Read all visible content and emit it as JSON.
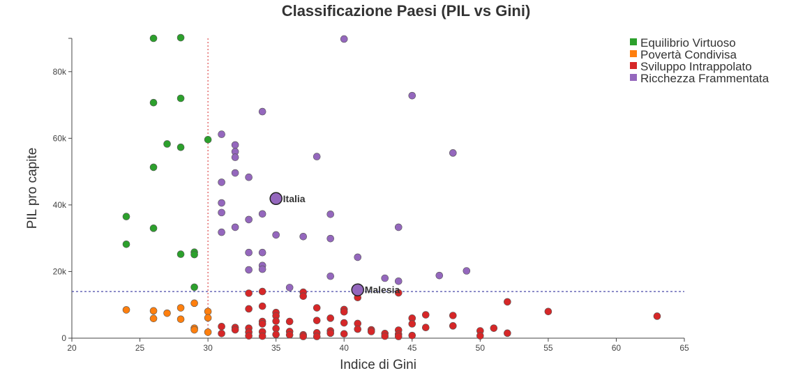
{
  "chart_data": {
    "type": "scatter",
    "title": "Classificazione Paesi (PIL vs Gini)",
    "xlabel": "Indice di Gini",
    "ylabel": "PIL pro capite",
    "xlim": [
      20,
      65
    ],
    "ylim": [
      0,
      90000
    ],
    "x_ticks": [
      20,
      25,
      30,
      35,
      40,
      45,
      50,
      55,
      60,
      65
    ],
    "y_ticks": [
      0,
      20000,
      40000,
      60000,
      80000
    ],
    "y_tick_labels": [
      "0",
      "20k",
      "40k",
      "60k",
      "80k"
    ],
    "grid": false,
    "legend_position": "top-right",
    "reference_lines": {
      "vertical_x": 30,
      "vertical_color": "#d62728",
      "horizontal_y": 14000,
      "horizontal_color": "#4a4aa8"
    },
    "series": [
      {
        "name": "Equilibrio Virtuoso",
        "color": "#2ca02c",
        "points": [
          [
            26,
            90000
          ],
          [
            28,
            90200
          ],
          [
            26,
            70700
          ],
          [
            28,
            72000
          ],
          [
            27,
            58300
          ],
          [
            28,
            57300
          ],
          [
            30,
            59600
          ],
          [
            26,
            51300
          ],
          [
            24,
            36500
          ],
          [
            26,
            33000
          ],
          [
            24,
            28200
          ],
          [
            28,
            25200
          ],
          [
            29,
            25800
          ],
          [
            29,
            25100
          ],
          [
            29,
            15300
          ]
        ]
      },
      {
        "name": "Povertà Condivisa",
        "color": "#ff7f0e",
        "points": [
          [
            24,
            8500
          ],
          [
            26,
            8200
          ],
          [
            26,
            5900
          ],
          [
            27,
            7500
          ],
          [
            28,
            9100
          ],
          [
            28,
            5700
          ],
          [
            29,
            10500
          ],
          [
            29,
            3000
          ],
          [
            29,
            2500
          ],
          [
            30,
            8000
          ],
          [
            30,
            6100
          ],
          [
            30,
            1800
          ]
        ]
      },
      {
        "name": "Sviluppo Intrappolato",
        "color": "#d62728",
        "points": [
          [
            31,
            3500
          ],
          [
            31,
            1400
          ],
          [
            32,
            3200
          ],
          [
            32,
            2500
          ],
          [
            33,
            13500
          ],
          [
            33,
            8800
          ],
          [
            33,
            3000
          ],
          [
            33,
            1800
          ],
          [
            33,
            700
          ],
          [
            34,
            14000
          ],
          [
            34,
            9600
          ],
          [
            34,
            5000
          ],
          [
            34,
            4300
          ],
          [
            34,
            1900
          ],
          [
            34,
            600
          ],
          [
            35,
            7700
          ],
          [
            35,
            6700
          ],
          [
            35,
            5100
          ],
          [
            35,
            2900
          ],
          [
            35,
            1100
          ],
          [
            36,
            5000
          ],
          [
            36,
            2000
          ],
          [
            36,
            1000
          ],
          [
            37,
            13800
          ],
          [
            37,
            12600
          ],
          [
            37,
            1000
          ],
          [
            37,
            500
          ],
          [
            38,
            9100
          ],
          [
            38,
            5300
          ],
          [
            38,
            1600
          ],
          [
            38,
            500
          ],
          [
            39,
            6000
          ],
          [
            39,
            2200
          ],
          [
            39,
            1500
          ],
          [
            40,
            8600
          ],
          [
            40,
            7900
          ],
          [
            40,
            4600
          ],
          [
            40,
            1300
          ],
          [
            41,
            12200
          ],
          [
            41,
            4400
          ],
          [
            41,
            2700
          ],
          [
            42,
            2500
          ],
          [
            42,
            2000
          ],
          [
            43,
            1400
          ],
          [
            43,
            600
          ],
          [
            44,
            13600
          ],
          [
            44,
            2400
          ],
          [
            44,
            1200
          ],
          [
            44,
            500
          ],
          [
            45,
            6000
          ],
          [
            45,
            4300
          ],
          [
            45,
            800
          ],
          [
            46,
            7000
          ],
          [
            46,
            3200
          ],
          [
            48,
            6800
          ],
          [
            48,
            3700
          ],
          [
            50,
            2200
          ],
          [
            50,
            700
          ],
          [
            51,
            3000
          ],
          [
            52,
            10900
          ],
          [
            52,
            1500
          ],
          [
            55,
            8000
          ],
          [
            63,
            6600
          ]
        ]
      },
      {
        "name": "Ricchezza Frammentata",
        "color": "#9467bd",
        "points": [
          [
            40,
            89800
          ],
          [
            45,
            72800
          ],
          [
            34,
            68000
          ],
          [
            31,
            61200
          ],
          [
            32,
            58000
          ],
          [
            32,
            56000
          ],
          [
            32,
            54300
          ],
          [
            38,
            54500
          ],
          [
            48,
            55600
          ],
          [
            32,
            49600
          ],
          [
            33,
            48300
          ],
          [
            31,
            46800
          ],
          [
            31,
            40600
          ],
          [
            31,
            37700
          ],
          [
            34,
            37300
          ],
          [
            39,
            37200
          ],
          [
            33,
            35600
          ],
          [
            32,
            33300
          ],
          [
            44,
            33300
          ],
          [
            31,
            31800
          ],
          [
            35,
            31000
          ],
          [
            37,
            30500
          ],
          [
            39,
            29900
          ],
          [
            33,
            25700
          ],
          [
            34,
            25700
          ],
          [
            41,
            24300
          ],
          [
            34,
            21800
          ],
          [
            34,
            20700
          ],
          [
            33,
            20500
          ],
          [
            49,
            20200
          ],
          [
            47,
            18800
          ],
          [
            39,
            18600
          ],
          [
            43,
            18000
          ],
          [
            44,
            17100
          ],
          [
            36,
            15200
          ]
        ]
      }
    ],
    "highlighted": [
      {
        "label": "Italia",
        "x": 35,
        "y": 41900,
        "color": "#9467bd"
      },
      {
        "label": "Malesia",
        "x": 41,
        "y": 14500,
        "color": "#9467bd"
      }
    ]
  }
}
